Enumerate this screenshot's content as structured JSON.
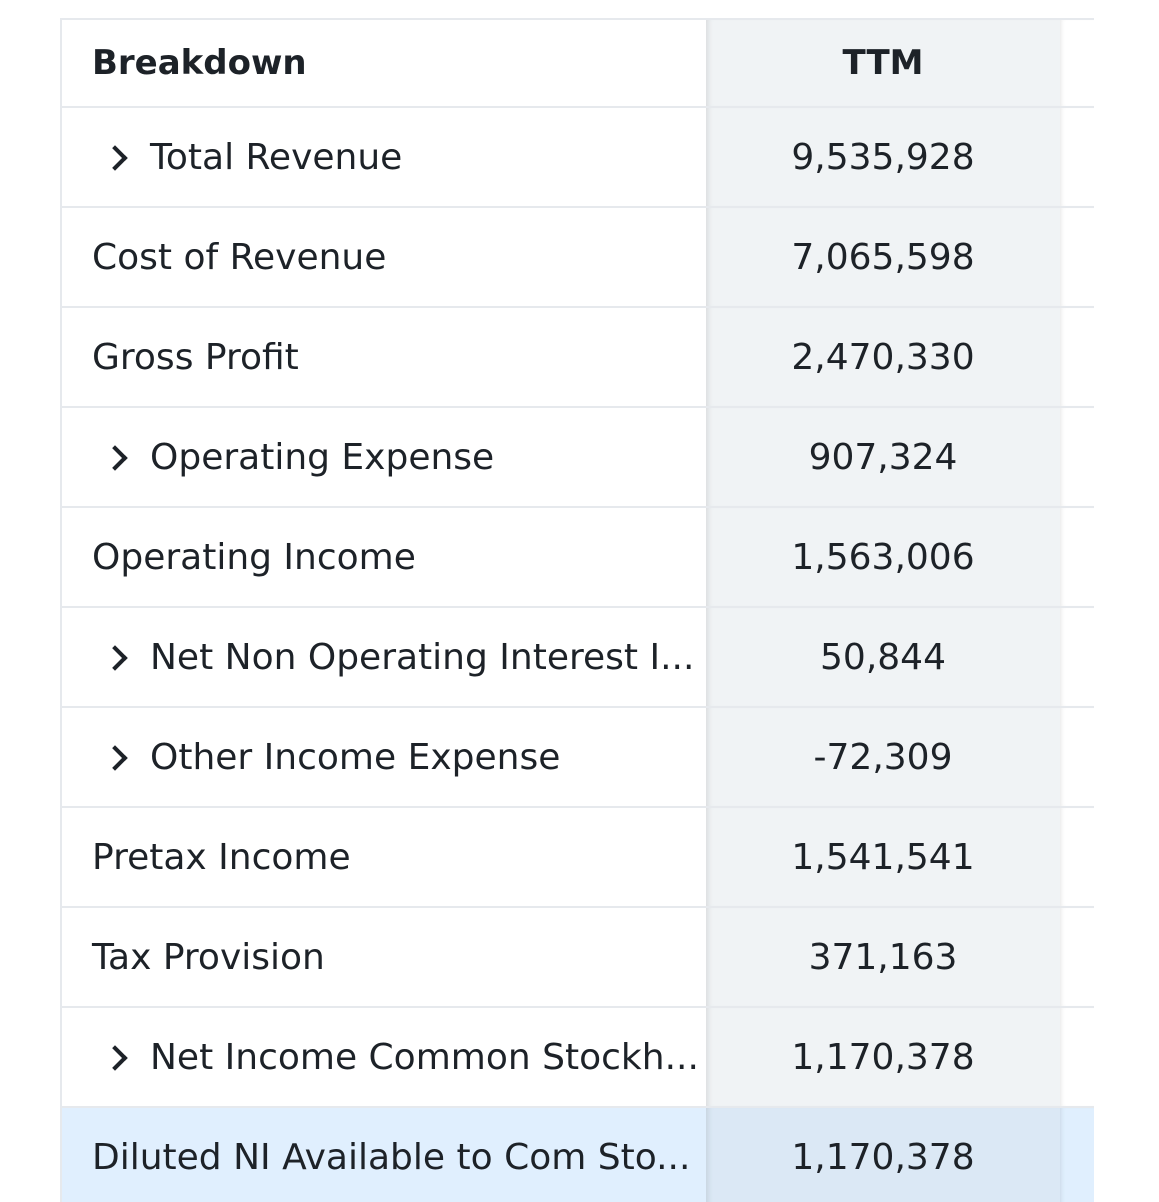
{
  "header": {
    "breakdown": "Breakdown",
    "ttm": "TTM"
  },
  "rows": [
    {
      "label": "Total Revenue",
      "value": "9,535,928",
      "expandable": true
    },
    {
      "label": "Cost of Revenue",
      "value": "7,065,598",
      "expandable": false
    },
    {
      "label": "Gross Profit",
      "value": "2,470,330",
      "expandable": false
    },
    {
      "label": "Operating Expense",
      "value": "907,324",
      "expandable": true
    },
    {
      "label": "Operating Income",
      "value": "1,563,006",
      "expandable": false
    },
    {
      "label": "Net Non Operating Interest I...",
      "value": "50,844",
      "expandable": true
    },
    {
      "label": "Other Income Expense",
      "value": "-72,309",
      "expandable": true
    },
    {
      "label": "Pretax Income",
      "value": "1,541,541",
      "expandable": false
    },
    {
      "label": "Tax Provision",
      "value": "371,163",
      "expandable": false
    },
    {
      "label": "Net Income Common Stockh...",
      "value": "1,170,378",
      "expandable": true
    },
    {
      "label": "Diluted NI Available to Com Sto...",
      "value": "1,170,378",
      "expandable": false,
      "highlighted": true
    }
  ],
  "colors": {
    "border": "#e6e9ed",
    "value_bg": "#f0f3f5",
    "highlight_bg": "#e0effe",
    "text": "#1d2228"
  }
}
